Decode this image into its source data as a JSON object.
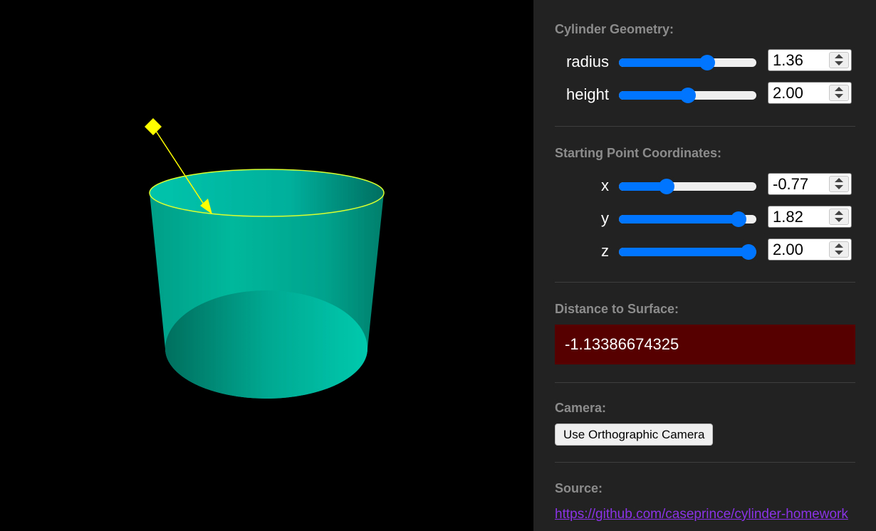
{
  "geometry": {
    "title": "Cylinder Geometry:",
    "radius": {
      "label": "radius",
      "value": "1.36",
      "fraction": 0.66
    },
    "height": {
      "label": "height",
      "value": "2.00",
      "fraction": 0.5
    }
  },
  "start_point": {
    "title": "Starting Point Coordinates:",
    "x": {
      "label": "x",
      "value": "-0.77",
      "fraction": 0.33
    },
    "y": {
      "label": "y",
      "value": "1.82",
      "fraction": 0.92
    },
    "z": {
      "label": "z",
      "value": "2.00",
      "fraction": 1.0
    }
  },
  "distance": {
    "title": "Distance to Surface:",
    "value": "-1.13386674325",
    "background_color": "#560000"
  },
  "camera": {
    "title": "Camera:",
    "button_label": "Use Orthographic Camera"
  },
  "source": {
    "title": "Source:",
    "link_text": "https://github.com/caseprince/cylinder-homework"
  },
  "scene": {
    "cylinder_color": "#00c9a7",
    "marker_color": "#ffff00",
    "background_color": "#000000"
  }
}
